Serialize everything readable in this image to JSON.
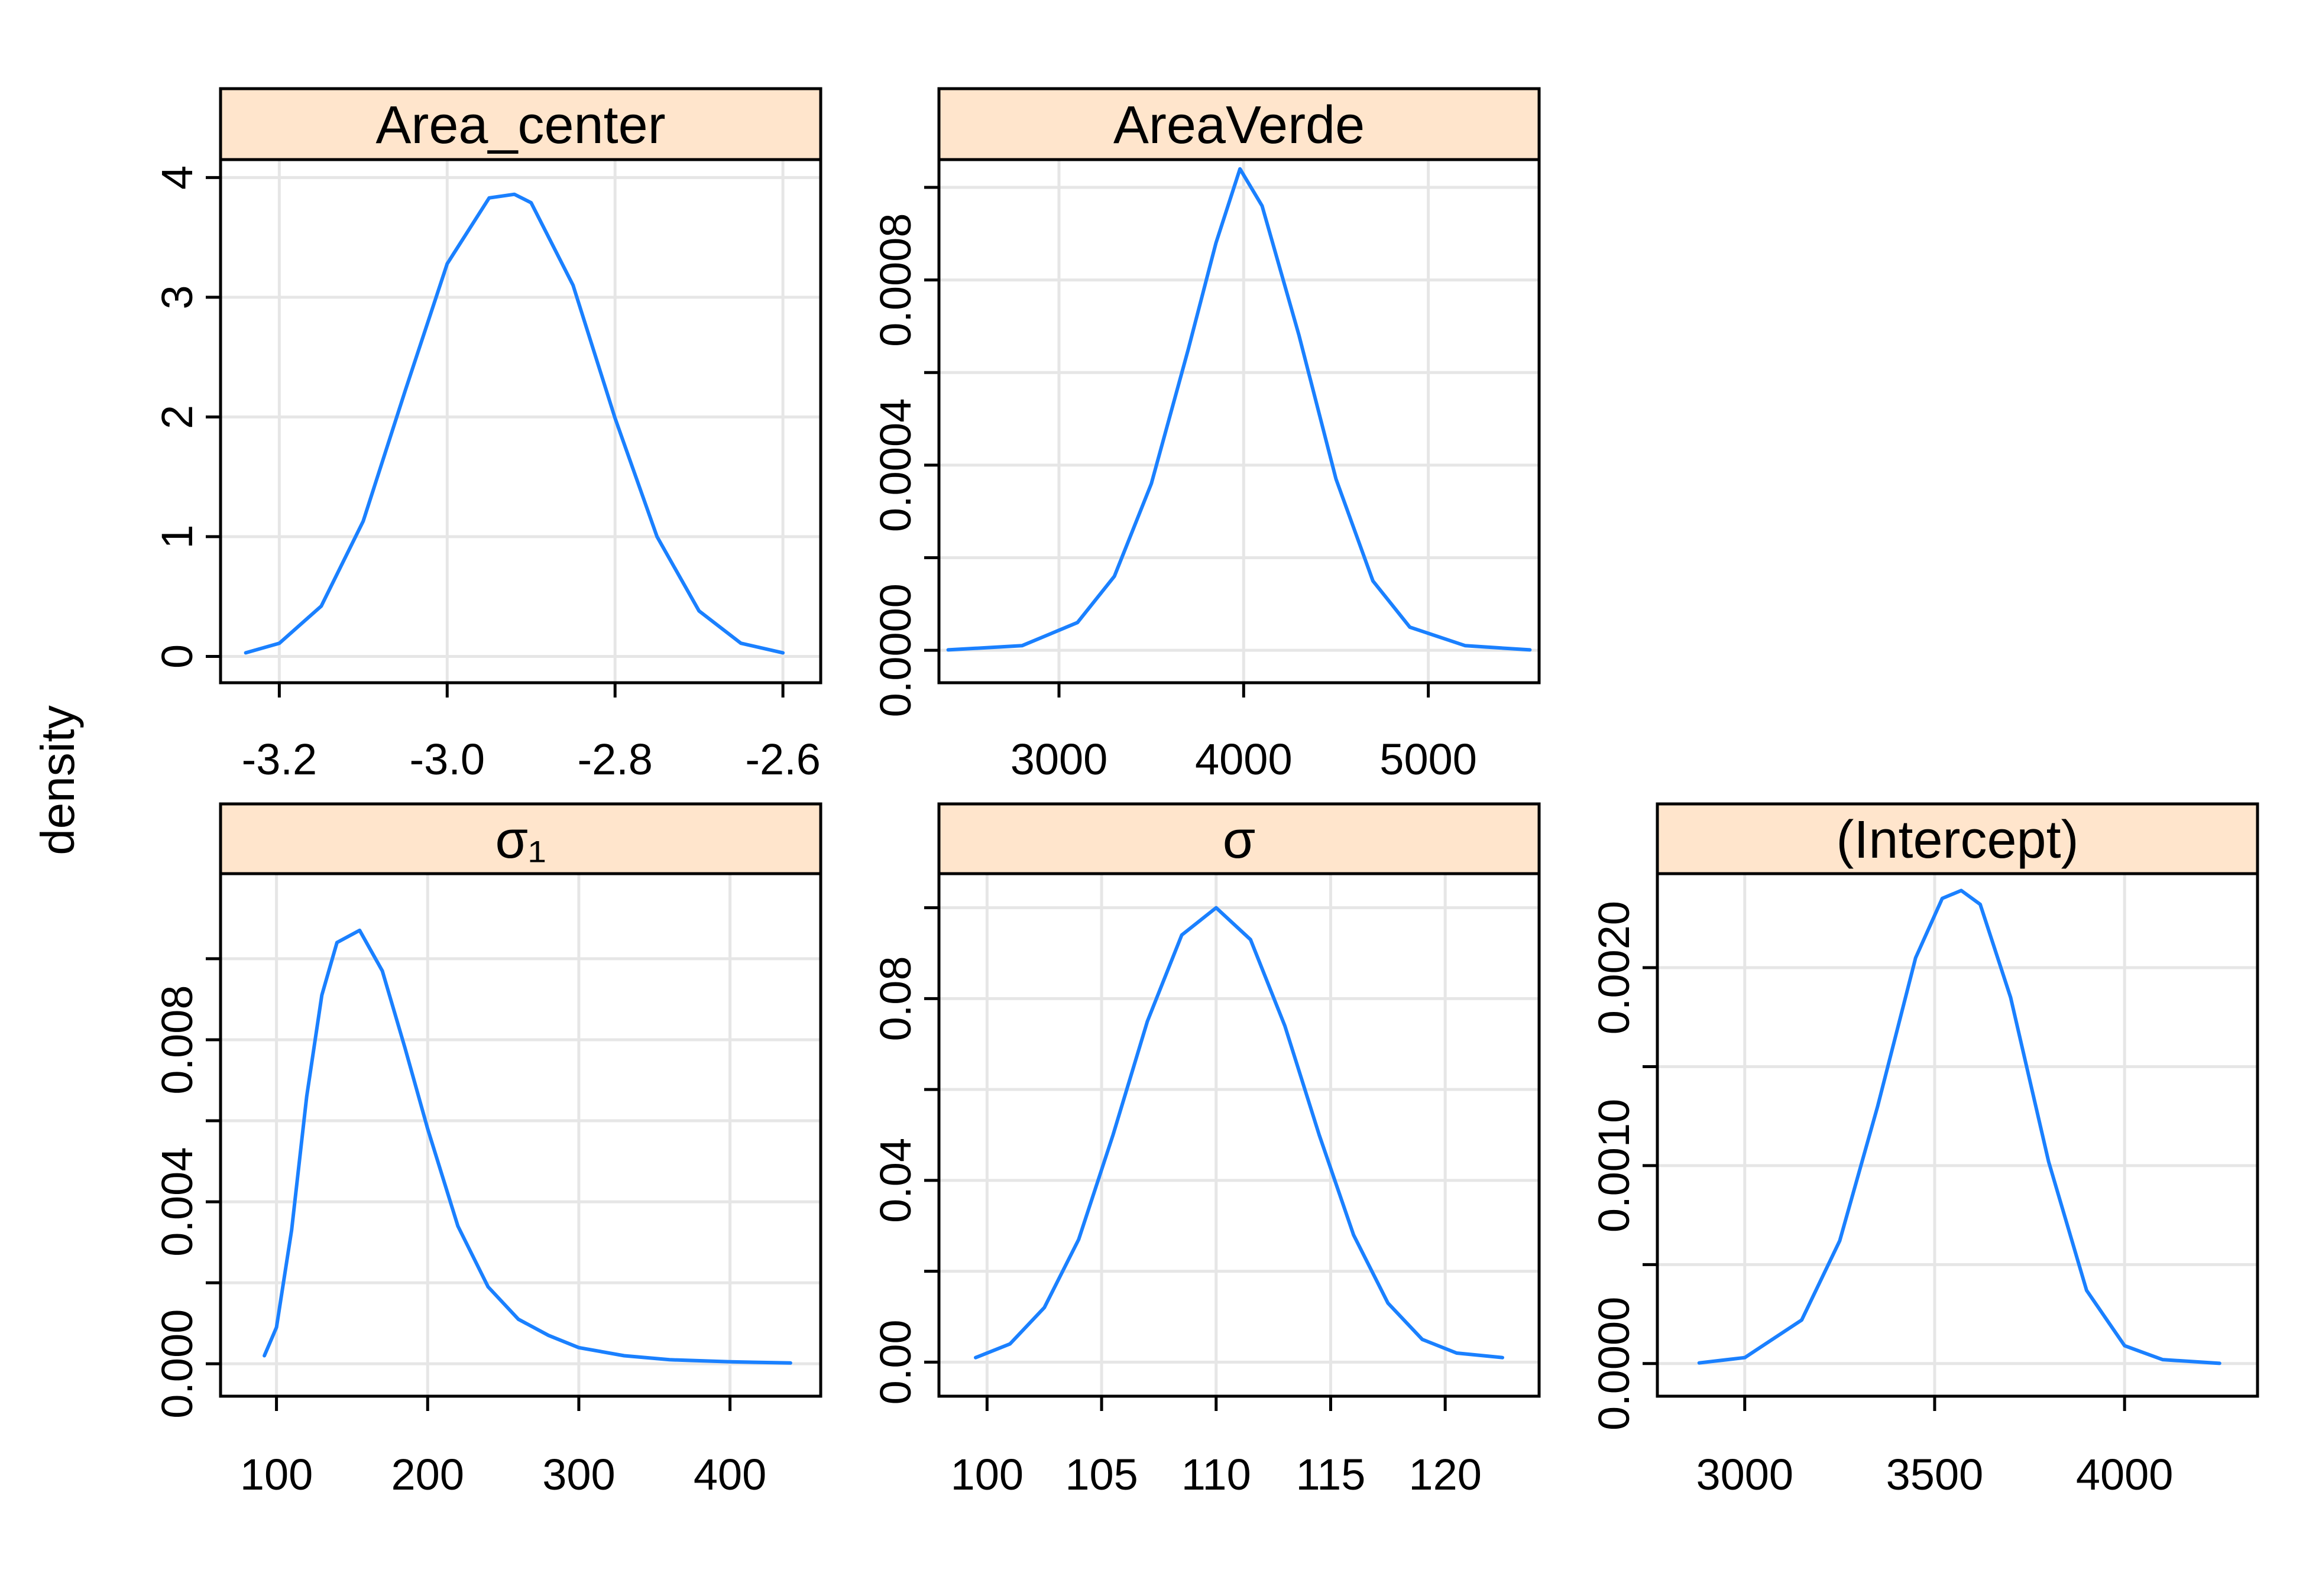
{
  "figure": {
    "ylabel": "density",
    "colors": {
      "line": "#1a80ff",
      "strip_background": "#ffe5cc",
      "grid": "#e6e6e6",
      "frame": "#000000"
    }
  },
  "chart_data": [
    {
      "type": "line",
      "title": "Area_center",
      "xlim": [
        -3.27,
        -2.555
      ],
      "ylim": [
        -0.22,
        4.15
      ],
      "xticks": [
        -3.2,
        -3.0,
        -2.8,
        -2.6
      ],
      "xtick_labels": [
        "-3.2",
        "-3.0",
        "-2.8",
        "-2.6"
      ],
      "yticks": [
        0,
        1,
        2,
        3,
        4
      ],
      "ytick_labels": [
        "0",
        "1",
        "2",
        "3",
        "4"
      ],
      "x": [
        -3.24,
        -3.2,
        -3.15,
        -3.1,
        -3.05,
        -3.0,
        -2.95,
        -2.92,
        -2.9,
        -2.85,
        -2.8,
        -2.75,
        -2.7,
        -2.65,
        -2.6
      ],
      "y": [
        0.03,
        0.11,
        0.42,
        1.13,
        2.22,
        3.28,
        3.83,
        3.86,
        3.79,
        3.1,
        1.99,
        1.0,
        0.38,
        0.11,
        0.03
      ]
    },
    {
      "type": "line",
      "title": "AreaVerde",
      "xlim": [
        2350,
        5600
      ],
      "ylim": [
        -7e-05,
        0.00106
      ],
      "xticks": [
        3000,
        4000,
        5000
      ],
      "xtick_labels": [
        "3000",
        "4000",
        "5000"
      ],
      "yticks": [
        0,
        0.0002,
        0.0004,
        0.0006,
        0.0008,
        0.001
      ],
      "ytick_labels": [
        "0.0000",
        "",
        "0.0004",
        "",
        "0.0008",
        ""
      ],
      "x": [
        2400,
        2800,
        3100,
        3300,
        3500,
        3700,
        3850,
        3980,
        4100,
        4300,
        4500,
        4700,
        4900,
        5200,
        5550
      ],
      "y": [
        1e-06,
        1e-05,
        6e-05,
        0.00016,
        0.00036,
        0.00065,
        0.00088,
        0.00104,
        0.00096,
        0.00068,
        0.00037,
        0.00015,
        5e-05,
        1e-05,
        1e-06
      ]
    },
    {
      "type": "line",
      "title": "σ₁",
      "xlim": [
        63,
        460
      ],
      "ylim": [
        -0.0008,
        0.0121
      ],
      "xticks": [
        100,
        200,
        300,
        400
      ],
      "xtick_labels": [
        "100",
        "200",
        "300",
        "400"
      ],
      "yticks": [
        0,
        0.002,
        0.004,
        0.006,
        0.008,
        0.01
      ],
      "ytick_labels": [
        "0.000",
        "",
        "0.004",
        "",
        "0.008",
        ""
      ],
      "x": [
        92,
        100,
        110,
        120,
        130,
        140,
        155,
        170,
        185,
        200,
        220,
        240,
        260,
        280,
        300,
        330,
        360,
        400,
        440
      ],
      "y": [
        0.0002,
        0.0009,
        0.0033,
        0.0066,
        0.0091,
        0.0104,
        0.0107,
        0.0097,
        0.0078,
        0.0058,
        0.0034,
        0.0019,
        0.0011,
        0.0007,
        0.0004,
        0.0002,
        0.0001,
        5e-05,
        2e-05
      ]
    },
    {
      "type": "line",
      "title": "σ",
      "xlim": [
        97.9,
        124.1
      ],
      "ylim": [
        -0.0075,
        0.1075
      ],
      "xticks": [
        100,
        105,
        110,
        115,
        120
      ],
      "xtick_labels": [
        "100",
        "105",
        "110",
        "115",
        "120"
      ],
      "yticks": [
        0,
        0.02,
        0.04,
        0.06,
        0.08,
        0.1
      ],
      "ytick_labels": [
        "0.00",
        "",
        "0.04",
        "",
        "0.08",
        ""
      ],
      "x": [
        99.5,
        101,
        102.5,
        104,
        105.5,
        107,
        108.5,
        110,
        111.5,
        113,
        114.5,
        116,
        117.5,
        119,
        120.5,
        122.5
      ],
      "y": [
        0.001,
        0.004,
        0.012,
        0.027,
        0.05,
        0.075,
        0.094,
        0.1,
        0.093,
        0.074,
        0.05,
        0.028,
        0.013,
        0.005,
        0.002,
        0.001
      ]
    },
    {
      "type": "line",
      "title": "(Intercept)",
      "xlim": [
        2770,
        4350
      ],
      "ylim": [
        -0.000165,
        0.002475
      ],
      "xticks": [
        3000,
        3500,
        4000
      ],
      "xtick_labels": [
        "3000",
        "3500",
        "4000"
      ],
      "yticks": [
        0,
        0.0005,
        0.001,
        0.0015,
        0.002
      ],
      "ytick_labels": [
        "0.0000",
        "",
        "0.0010",
        "",
        "0.0020"
      ],
      "x": [
        2880,
        3000,
        3150,
        3250,
        3350,
        3450,
        3520,
        3570,
        3620,
        3700,
        3800,
        3900,
        4000,
        4100,
        4250
      ],
      "y": [
        3e-06,
        3e-05,
        0.00022,
        0.00062,
        0.0013,
        0.00205,
        0.00235,
        0.00239,
        0.00232,
        0.00185,
        0.00102,
        0.00037,
        9e-05,
        2e-05,
        1e-06
      ]
    }
  ]
}
